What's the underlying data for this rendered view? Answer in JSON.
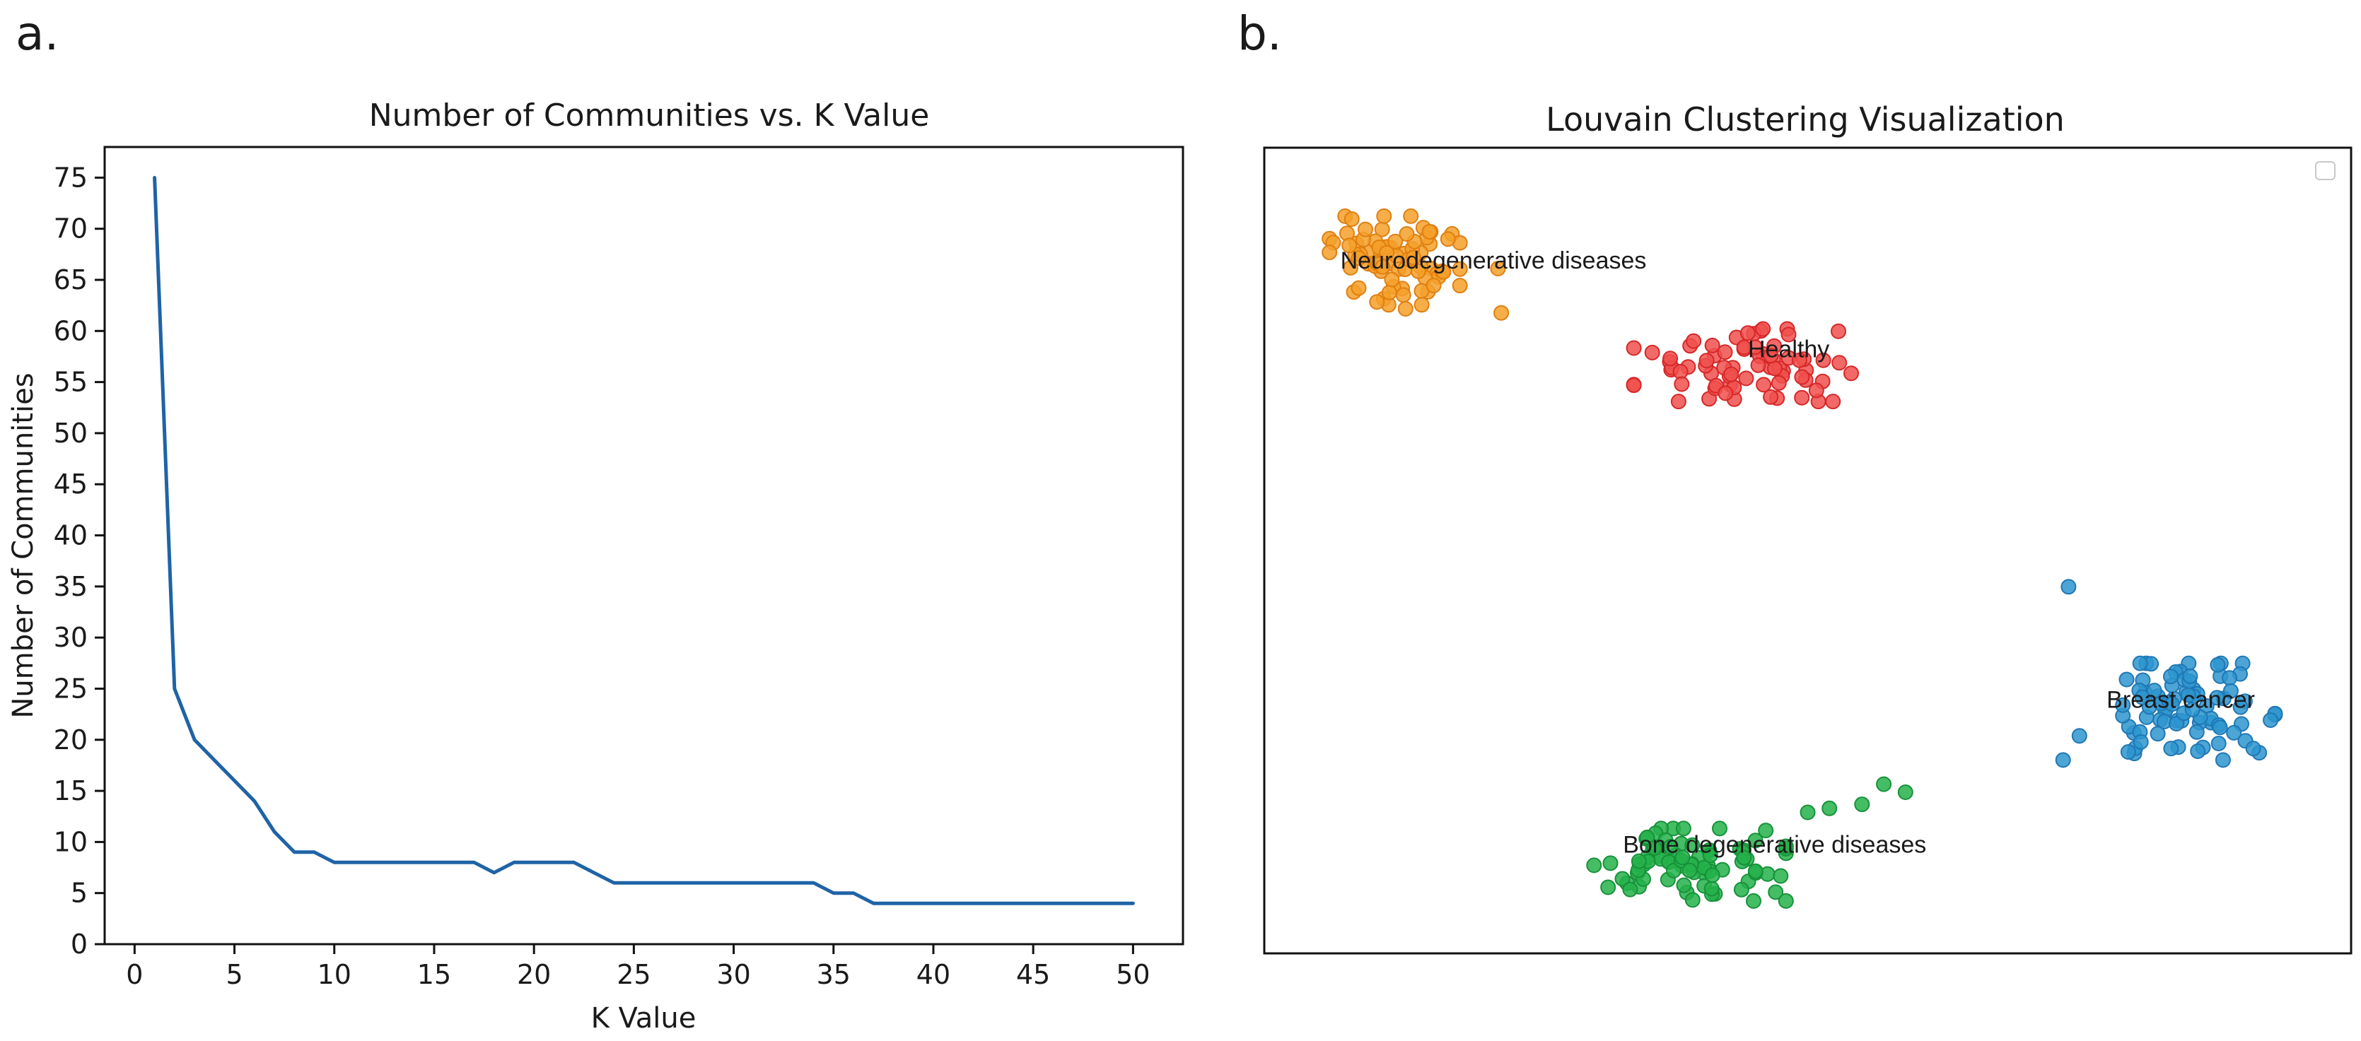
{
  "panels": {
    "a": {
      "label": "a."
    },
    "b": {
      "label": "b."
    }
  },
  "chart_data": [
    {
      "type": "line",
      "title": "Number of Communities vs. K Value",
      "xlabel": "K Value",
      "ylabel": "Number of Communities",
      "xlim": [
        -1.5,
        52.5
      ],
      "ylim": [
        0,
        78
      ],
      "xticks": [
        0,
        5,
        10,
        15,
        20,
        25,
        30,
        35,
        40,
        45,
        50
      ],
      "yticks": [
        0,
        5,
        10,
        15,
        20,
        25,
        30,
        35,
        40,
        45,
        50,
        55,
        60,
        65,
        70,
        75
      ],
      "grid": false,
      "line_color": "#1f63a6",
      "series": [
        {
          "name": "communities",
          "x": [
            1,
            2,
            3,
            4,
            5,
            6,
            7,
            8,
            9,
            10,
            11,
            12,
            13,
            14,
            15,
            16,
            17,
            18,
            19,
            20,
            21,
            22,
            23,
            24,
            25,
            26,
            27,
            28,
            29,
            30,
            31,
            32,
            33,
            34,
            35,
            36,
            37,
            38,
            39,
            40,
            41,
            42,
            43,
            44,
            45,
            46,
            47,
            48,
            49,
            50
          ],
          "y": [
            75,
            25,
            20,
            18,
            16,
            14,
            11,
            9,
            9,
            8,
            8,
            8,
            8,
            8,
            8,
            8,
            8,
            7,
            8,
            8,
            8,
            8,
            7,
            6,
            6,
            6,
            6,
            6,
            6,
            6,
            6,
            6,
            6,
            6,
            5,
            5,
            4,
            4,
            4,
            4,
            4,
            4,
            4,
            4,
            4,
            4,
            4,
            4,
            4,
            4
          ]
        }
      ]
    },
    {
      "type": "scatter",
      "title": "Louvain Clustering Visualization",
      "xlim": [
        0,
        100
      ],
      "ylim": [
        0,
        100
      ],
      "legend": "top-right (empty)",
      "clusters": [
        {
          "name": "Neurodegenerative diseases",
          "color": "#f5a02a",
          "edge": "#e07f10",
          "center": [
            12,
            86
          ],
          "spread": [
            6,
            5.5
          ],
          "count": 75,
          "label_pos": [
            7,
            85
          ],
          "extras": [
            [
              21.5,
              85
            ],
            [
              21.8,
              79.5
            ],
            [
              13,
              80
            ]
          ]
        },
        {
          "name": "Healthy",
          "color": "#f0504e",
          "edge": "#d62728",
          "center": [
            44,
            73
          ],
          "spread": [
            10,
            4.5
          ],
          "count": 70,
          "label_pos": [
            44.5,
            74
          ],
          "extras": [
            [
              39.5,
              76
            ],
            [
              54,
              72
            ]
          ]
        },
        {
          "name": "Breast cancer",
          "color": "#2e95cf",
          "edge": "#1f77b4",
          "center": [
            86,
            30
          ],
          "spread": [
            7,
            6
          ],
          "count": 80,
          "label_pos": [
            77.5,
            30.5
          ],
          "extras": [
            [
              74,
              45.5
            ],
            [
              73.5,
              24
            ],
            [
              75,
              27
            ],
            [
              79.5,
              25
            ]
          ]
        },
        {
          "name": "Bone degenerative diseases",
          "color": "#25b14a",
          "edge": "#17913a",
          "center": [
            39,
            11
          ],
          "spread": [
            9,
            4.5
          ],
          "count": 80,
          "label_pos": [
            33,
            12.5
          ],
          "extras": [
            [
              55,
              18.5
            ],
            [
              57,
              21
            ],
            [
              59,
              20
            ],
            [
              52,
              18
            ],
            [
              50,
              17.5
            ]
          ]
        }
      ]
    }
  ]
}
